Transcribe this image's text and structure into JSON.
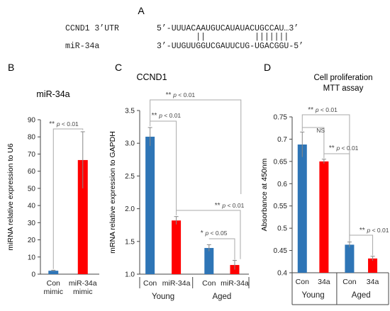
{
  "panel_a": {
    "letter": "A",
    "gene_label": "CCND1 3’UTR",
    "gene_seq": "5’-UUUACAAUGUCAUAUACUGCCAU…3’",
    "mirna_label": "miR-34a",
    "mirna_seq": "3’-UUGUUGGUCGAUUCUG-UGACGGU-5’",
    "pairing": "        ||          |||||||"
  },
  "chart_data": [
    {
      "panel": "B",
      "type": "bar",
      "title": "miR-34a",
      "ylabel": "miRNA relative expression to U6",
      "xlabel": "",
      "ylim": [
        0,
        90
      ],
      "yticks": [
        "0",
        "10",
        "20",
        "30",
        "40",
        "50",
        "60",
        "70",
        "80",
        "90"
      ],
      "categories": [
        [
          "Con",
          "mimic"
        ],
        [
          "miR-34a",
          "mimic"
        ]
      ],
      "values": [
        2,
        66.5
      ],
      "errors": [
        0.3,
        16.5
      ],
      "colors": [
        "#2e75b6",
        "#ff0000"
      ],
      "grid": false,
      "annotations": [
        {
          "stars": "**",
          "text": "p < 0.01"
        }
      ]
    },
    {
      "panel": "C",
      "type": "bar",
      "title": "CCND1",
      "ylabel": "mRNA relative expression to GAPDH",
      "xlabel": "",
      "ylim": [
        1.0,
        3.5
      ],
      "yticks": [
        "1.0",
        "1.5",
        "2.0",
        "2.5",
        "3.0",
        "3.5"
      ],
      "categories": [
        "Con",
        "miR-34a",
        "Con",
        "miR-34a"
      ],
      "groups": [
        "Young",
        "Aged"
      ],
      "values": [
        3.1,
        1.82,
        1.4,
        1.14
      ],
      "errors": [
        0.14,
        0.06,
        0.05,
        0.07
      ],
      "colors": [
        "#2e75b6",
        "#ff0000",
        "#2e75b6",
        "#ff0000"
      ],
      "grid": false,
      "annotations": [
        {
          "stars": "**",
          "text": "p < 0.01"
        },
        {
          "stars": "**",
          "text": "p < 0.01"
        },
        {
          "stars": "**",
          "text": "p < 0.01"
        },
        {
          "stars": "*",
          "text": "p < 0.05"
        }
      ]
    },
    {
      "panel": "D",
      "type": "bar",
      "title": "Cell proliferation",
      "subtitle": "MTT assay",
      "ylabel": "Absorbance at 450nm",
      "xlabel": "",
      "ylim": [
        0.4,
        0.75
      ],
      "yticks": [
        "0.4",
        "0.45",
        "0.5",
        "0.55",
        "0.6",
        "0.65",
        "0.7",
        "0.75"
      ],
      "categories": [
        "Con",
        "34a",
        "Con",
        "34a"
      ],
      "groups": [
        "Young",
        "Aged"
      ],
      "values": [
        0.688,
        0.65,
        0.463,
        0.432
      ],
      "errors": [
        0.028,
        0.005,
        0.006,
        0.005
      ],
      "colors": [
        "#2e75b6",
        "#ff0000",
        "#2e75b6",
        "#ff0000"
      ],
      "grid": false,
      "annotations": [
        {
          "stars": "",
          "text": "NS"
        },
        {
          "stars": "**",
          "text": "p < 0.01"
        },
        {
          "stars": "**",
          "text": "p < 0.01"
        },
        {
          "stars": "**",
          "text": "p < 0.01"
        }
      ]
    }
  ]
}
